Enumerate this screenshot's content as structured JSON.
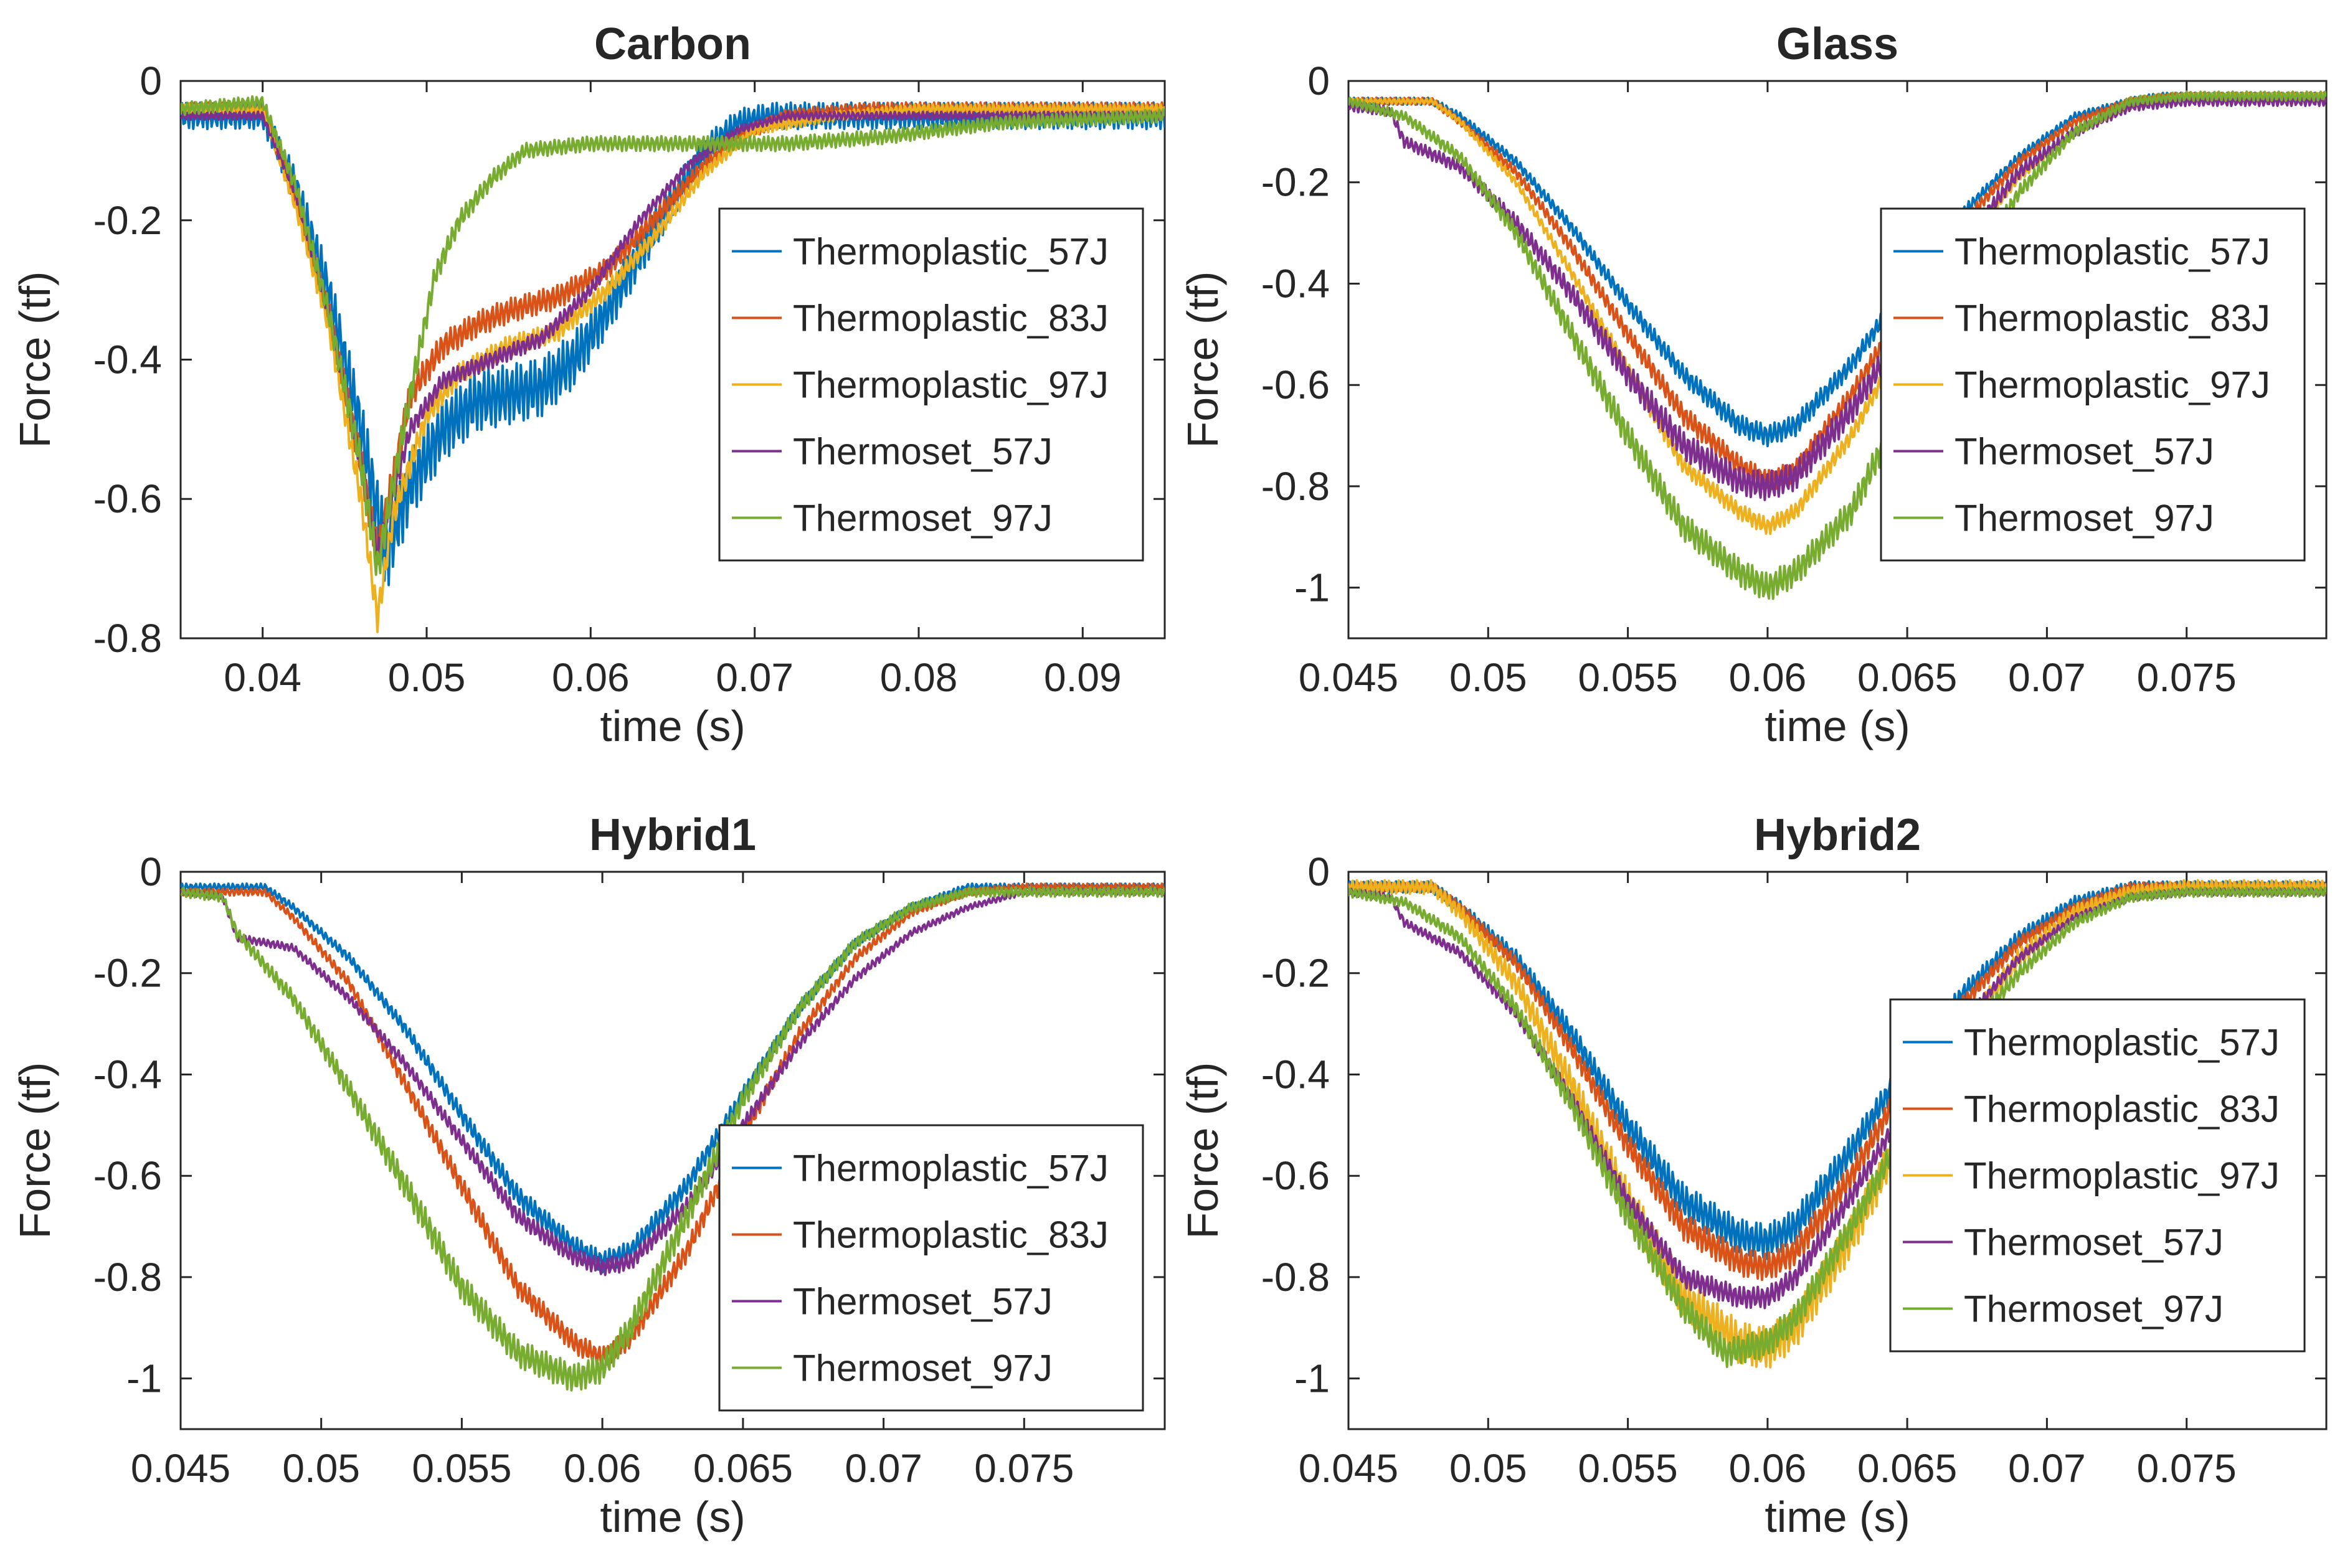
{
  "colors": {
    "Thermoplastic_57J": "#0072BD",
    "Thermoplastic_83J": "#D95319",
    "Thermoplastic_97J": "#EDB120",
    "Thermoset_57J": "#7E2F8E",
    "Thermoset_97J": "#77AC30"
  },
  "chart_data": [
    {
      "type": "line",
      "title": "Carbon",
      "xlabel": "time (s)",
      "ylabel": "Force (tf)",
      "xlim": [
        0.035,
        0.095
      ],
      "ylim": [
        -0.8,
        0
      ],
      "xticks": [
        0.04,
        0.05,
        0.06,
        0.07,
        0.08,
        0.09
      ],
      "xtick_labels": [
        "0.04",
        "0.05",
        "0.06",
        "0.07",
        "0.08",
        "0.09"
      ],
      "yticks": [
        0,
        -0.2,
        -0.4,
        -0.6,
        -0.8
      ],
      "ytick_labels": [
        "0",
        "-0.2",
        "-0.4",
        "-0.6",
        "-0.8"
      ],
      "legend_position": "right-middle",
      "series": [
        {
          "name": "Thermoplastic_57J",
          "noise": 0.04,
          "x": [
            0.035,
            0.04,
            0.042,
            0.044,
            0.046,
            0.0475,
            0.049,
            0.051,
            0.053,
            0.055,
            0.057,
            0.059,
            0.061,
            0.063,
            0.065,
            0.067,
            0.069,
            0.071,
            0.075,
            0.08,
            0.085,
            0.09,
            0.095
          ],
          "y": [
            -0.05,
            -0.05,
            -0.15,
            -0.3,
            -0.5,
            -0.68,
            -0.58,
            -0.5,
            -0.46,
            -0.45,
            -0.44,
            -0.4,
            -0.33,
            -0.25,
            -0.17,
            -0.1,
            -0.06,
            -0.05,
            -0.05,
            -0.05,
            -0.05,
            -0.05,
            -0.05
          ]
        },
        {
          "name": "Thermoplastic_83J",
          "noise": 0.02,
          "x": [
            0.035,
            0.04,
            0.042,
            0.044,
            0.046,
            0.047,
            0.049,
            0.051,
            0.053,
            0.055,
            0.058,
            0.061,
            0.063,
            0.065,
            0.067,
            0.069,
            0.072,
            0.077,
            0.085,
            0.095
          ],
          "y": [
            -0.04,
            -0.04,
            -0.17,
            -0.33,
            -0.55,
            -0.68,
            -0.45,
            -0.38,
            -0.35,
            -0.33,
            -0.31,
            -0.27,
            -0.22,
            -0.17,
            -0.12,
            -0.08,
            -0.05,
            -0.04,
            -0.04,
            -0.04
          ]
        },
        {
          "name": "Thermoplastic_97J",
          "noise": 0.015,
          "x": [
            0.035,
            0.04,
            0.042,
            0.044,
            0.046,
            0.047,
            0.048,
            0.05,
            0.052,
            0.055,
            0.058,
            0.061,
            0.064,
            0.067,
            0.07,
            0.075,
            0.08,
            0.085,
            0.095
          ],
          "y": [
            -0.04,
            -0.04,
            -0.18,
            -0.35,
            -0.6,
            -0.77,
            -0.62,
            -0.48,
            -0.42,
            -0.38,
            -0.36,
            -0.3,
            -0.22,
            -0.13,
            -0.07,
            -0.05,
            -0.04,
            -0.04,
            -0.04
          ]
        },
        {
          "name": "Thermoset_57J",
          "noise": 0.012,
          "x": [
            0.035,
            0.04,
            0.042,
            0.044,
            0.046,
            0.047,
            0.049,
            0.051,
            0.054,
            0.057,
            0.06,
            0.063,
            0.066,
            0.069,
            0.072,
            0.077,
            0.085,
            0.095
          ],
          "y": [
            -0.05,
            -0.05,
            -0.16,
            -0.33,
            -0.55,
            -0.68,
            -0.5,
            -0.43,
            -0.4,
            -0.37,
            -0.3,
            -0.2,
            -0.12,
            -0.07,
            -0.05,
            -0.05,
            -0.05,
            -0.05
          ]
        },
        {
          "name": "Thermoset_97J",
          "noise": 0.02,
          "x": [
            0.035,
            0.04,
            0.042,
            0.044,
            0.046,
            0.047,
            0.049,
            0.0505,
            0.052,
            0.054,
            0.056,
            0.06,
            0.066,
            0.072,
            0.078,
            0.085,
            0.095
          ],
          "y": [
            -0.04,
            -0.03,
            -0.15,
            -0.33,
            -0.55,
            -0.7,
            -0.45,
            -0.28,
            -0.2,
            -0.14,
            -0.1,
            -0.09,
            -0.09,
            -0.09,
            -0.08,
            -0.06,
            -0.05
          ]
        }
      ]
    },
    {
      "type": "line",
      "title": "Glass",
      "xlabel": "time (s)",
      "ylabel": "Force (tf)",
      "xlim": [
        0.045,
        0.08
      ],
      "ylim": [
        -1.1,
        0
      ],
      "xticks": [
        0.045,
        0.05,
        0.055,
        0.06,
        0.065,
        0.07,
        0.075
      ],
      "xtick_labels": [
        "0.045",
        "0.05",
        "0.055",
        "0.06",
        "0.065",
        "0.07",
        "0.075"
      ],
      "yticks": [
        0,
        -0.2,
        -0.4,
        -0.6,
        -0.8,
        -1
      ],
      "ytick_labels": [
        "0",
        "-0.2",
        "-0.4",
        "-0.6",
        "-0.8",
        "-1"
      ],
      "legend_position": "right-middle",
      "series": [
        {
          "name": "Thermoplastic_57J",
          "noise": 0.015,
          "x": [
            0.045,
            0.048,
            0.049,
            0.051,
            0.053,
            0.055,
            0.057,
            0.059,
            0.06,
            0.061,
            0.063,
            0.065,
            0.067,
            0.069,
            0.071,
            0.073,
            0.074,
            0.077,
            0.08
          ],
          "y": [
            -0.04,
            -0.04,
            -0.07,
            -0.16,
            -0.29,
            -0.44,
            -0.58,
            -0.68,
            -0.7,
            -0.68,
            -0.56,
            -0.4,
            -0.26,
            -0.15,
            -0.07,
            -0.04,
            -0.03,
            -0.03,
            -0.03
          ]
        },
        {
          "name": "Thermoplastic_83J",
          "noise": 0.015,
          "x": [
            0.045,
            0.048,
            0.049,
            0.051,
            0.053,
            0.055,
            0.057,
            0.059,
            0.06,
            0.061,
            0.063,
            0.065,
            0.067,
            0.069,
            0.071,
            0.073,
            0.0745,
            0.077,
            0.08
          ],
          "y": [
            -0.04,
            -0.04,
            -0.08,
            -0.18,
            -0.33,
            -0.5,
            -0.66,
            -0.76,
            -0.79,
            -0.77,
            -0.62,
            -0.44,
            -0.28,
            -0.16,
            -0.08,
            -0.04,
            -0.03,
            -0.03,
            -0.03
          ]
        },
        {
          "name": "Thermoplastic_97J",
          "noise": 0.012,
          "x": [
            0.045,
            0.048,
            0.049,
            0.051,
            0.053,
            0.055,
            0.057,
            0.059,
            0.06,
            0.061,
            0.063,
            0.065,
            0.067,
            0.069,
            0.071,
            0.073,
            0.075,
            0.077,
            0.08
          ],
          "y": [
            -0.04,
            -0.04,
            -0.08,
            -0.2,
            -0.38,
            -0.57,
            -0.76,
            -0.85,
            -0.88,
            -0.85,
            -0.7,
            -0.5,
            -0.33,
            -0.19,
            -0.1,
            -0.05,
            -0.03,
            -0.03,
            -0.03
          ]
        },
        {
          "name": "Thermoset_57J",
          "noise": 0.02,
          "x": [
            0.045,
            0.0465,
            0.047,
            0.049,
            0.051,
            0.053,
            0.055,
            0.057,
            0.059,
            0.06,
            0.061,
            0.063,
            0.065,
            0.067,
            0.069,
            0.071,
            0.073,
            0.075,
            0.08
          ],
          "y": [
            -0.05,
            -0.06,
            -0.12,
            -0.17,
            -0.28,
            -0.42,
            -0.58,
            -0.72,
            -0.79,
            -0.8,
            -0.78,
            -0.65,
            -0.48,
            -0.32,
            -0.18,
            -0.1,
            -0.05,
            -0.04,
            -0.04
          ]
        },
        {
          "name": "Thermoset_97J",
          "noise": 0.02,
          "x": [
            0.045,
            0.047,
            0.049,
            0.051,
            0.053,
            0.055,
            0.057,
            0.059,
            0.06,
            0.061,
            0.063,
            0.065,
            0.067,
            0.069,
            0.071,
            0.073,
            0.075,
            0.08
          ],
          "y": [
            -0.04,
            -0.07,
            -0.15,
            -0.3,
            -0.5,
            -0.7,
            -0.88,
            -0.97,
            -1.0,
            -0.97,
            -0.85,
            -0.62,
            -0.4,
            -0.22,
            -0.1,
            -0.04,
            -0.03,
            -0.03
          ]
        }
      ]
    },
    {
      "type": "line",
      "title": "Hybrid1",
      "xlabel": "time (s)",
      "ylabel": "Force (tf)",
      "xlim": [
        0.045,
        0.08
      ],
      "ylim": [
        -1.1,
        0
      ],
      "xticks": [
        0.045,
        0.05,
        0.055,
        0.06,
        0.065,
        0.07,
        0.075
      ],
      "xtick_labels": [
        "0.045",
        "0.05",
        "0.055",
        "0.06",
        "0.065",
        "0.07",
        "0.075"
      ],
      "yticks": [
        0,
        -0.2,
        -0.4,
        -0.6,
        -0.8,
        -1
      ],
      "ytick_labels": [
        "0",
        "-0.2",
        "-0.4",
        "-0.6",
        "-0.8",
        "-1"
      ],
      "legend_position": "right-bottom",
      "series": [
        {
          "name": "Thermoplastic_57J",
          "noise": 0.015,
          "x": [
            0.045,
            0.048,
            0.049,
            0.051,
            0.053,
            0.055,
            0.057,
            0.059,
            0.06,
            0.061,
            0.063,
            0.065,
            0.067,
            0.069,
            0.071,
            0.073,
            0.0745,
            0.077,
            0.08
          ],
          "y": [
            -0.03,
            -0.03,
            -0.07,
            -0.17,
            -0.31,
            -0.48,
            -0.64,
            -0.74,
            -0.77,
            -0.75,
            -0.62,
            -0.44,
            -0.27,
            -0.14,
            -0.07,
            -0.03,
            -0.03,
            -0.03,
            -0.03
          ]
        },
        {
          "name": "Thermoplastic_83J",
          "noise": 0.015,
          "x": [
            0.045,
            0.048,
            0.049,
            0.051,
            0.053,
            0.055,
            0.057,
            0.059,
            0.06,
            0.061,
            0.063,
            0.065,
            0.067,
            0.069,
            0.071,
            0.073,
            0.075,
            0.077,
            0.08
          ],
          "y": [
            -0.04,
            -0.04,
            -0.09,
            -0.22,
            -0.42,
            -0.62,
            -0.82,
            -0.93,
            -0.96,
            -0.92,
            -0.75,
            -0.52,
            -0.32,
            -0.17,
            -0.08,
            -0.04,
            -0.03,
            -0.03,
            -0.03
          ]
        },
        {
          "name": "Thermoset_57J",
          "noise": 0.012,
          "x": [
            0.045,
            0.0465,
            0.047,
            0.049,
            0.051,
            0.053,
            0.055,
            0.057,
            0.059,
            0.06,
            0.061,
            0.063,
            0.065,
            0.067,
            0.069,
            0.071,
            0.073,
            0.075,
            0.077,
            0.08
          ],
          "y": [
            -0.04,
            -0.05,
            -0.13,
            -0.15,
            -0.25,
            -0.38,
            -0.53,
            -0.68,
            -0.76,
            -0.78,
            -0.77,
            -0.66,
            -0.5,
            -0.34,
            -0.21,
            -0.12,
            -0.07,
            -0.04,
            -0.04,
            -0.04
          ]
        },
        {
          "name": "Thermoset_97J",
          "noise": 0.02,
          "x": [
            0.045,
            0.0465,
            0.047,
            0.049,
            0.051,
            0.053,
            0.055,
            0.057,
            0.059,
            0.06,
            0.061,
            0.063,
            0.065,
            0.067,
            0.069,
            0.071,
            0.073,
            0.08
          ],
          "y": [
            -0.04,
            -0.05,
            -0.12,
            -0.25,
            -0.43,
            -0.62,
            -0.82,
            -0.95,
            -1.0,
            -0.98,
            -0.9,
            -0.68,
            -0.45,
            -0.27,
            -0.14,
            -0.07,
            -0.04,
            -0.04
          ]
        }
      ]
    },
    {
      "type": "line",
      "title": "Hybrid2",
      "xlabel": "time (s)",
      "ylabel": "Force (tf)",
      "xlim": [
        0.045,
        0.08
      ],
      "ylim": [
        -1.1,
        0
      ],
      "xticks": [
        0.045,
        0.05,
        0.055,
        0.06,
        0.065,
        0.07,
        0.075
      ],
      "xtick_labels": [
        "0.045",
        "0.05",
        "0.055",
        "0.06",
        "0.065",
        "0.07",
        "0.075"
      ],
      "yticks": [
        0,
        -0.2,
        -0.4,
        -0.6,
        -0.8,
        -1
      ],
      "ytick_labels": [
        "0",
        "-0.2",
        "-0.4",
        "-0.6",
        "-0.8",
        "-1"
      ],
      "legend_position": "right-middle",
      "series": [
        {
          "name": "Thermoplastic_57J",
          "noise": 0.025,
          "x": [
            0.045,
            0.048,
            0.049,
            0.051,
            0.053,
            0.055,
            0.057,
            0.059,
            0.06,
            0.061,
            0.063,
            0.065,
            0.067,
            0.069,
            0.071,
            0.073,
            0.075,
            0.08
          ],
          "y": [
            -0.03,
            -0.03,
            -0.07,
            -0.17,
            -0.32,
            -0.5,
            -0.65,
            -0.72,
            -0.73,
            -0.7,
            -0.55,
            -0.38,
            -0.24,
            -0.13,
            -0.06,
            -0.03,
            -0.03,
            -0.03
          ]
        },
        {
          "name": "Thermoplastic_83J",
          "noise": 0.02,
          "x": [
            0.045,
            0.048,
            0.049,
            0.051,
            0.053,
            0.055,
            0.057,
            0.059,
            0.06,
            0.061,
            0.063,
            0.065,
            0.067,
            0.069,
            0.071,
            0.073,
            0.075,
            0.08
          ],
          "y": [
            -0.03,
            -0.03,
            -0.07,
            -0.18,
            -0.35,
            -0.54,
            -0.7,
            -0.77,
            -0.78,
            -0.75,
            -0.6,
            -0.41,
            -0.26,
            -0.14,
            -0.07,
            -0.03,
            -0.03,
            -0.03
          ]
        },
        {
          "name": "Thermoplastic_97J",
          "noise": 0.03,
          "x": [
            0.045,
            0.048,
            0.049,
            0.051,
            0.053,
            0.055,
            0.057,
            0.059,
            0.06,
            0.061,
            0.063,
            0.065,
            0.067,
            0.069,
            0.071,
            0.073,
            0.075,
            0.08
          ],
          "y": [
            -0.03,
            -0.03,
            -0.08,
            -0.22,
            -0.42,
            -0.65,
            -0.84,
            -0.93,
            -0.94,
            -0.9,
            -0.72,
            -0.5,
            -0.32,
            -0.17,
            -0.08,
            -0.04,
            -0.03,
            -0.03
          ]
        },
        {
          "name": "Thermoset_57J",
          "noise": 0.015,
          "x": [
            0.045,
            0.0465,
            0.047,
            0.049,
            0.051,
            0.053,
            0.055,
            0.057,
            0.059,
            0.06,
            0.061,
            0.063,
            0.065,
            0.067,
            0.069,
            0.071,
            0.073,
            0.075,
            0.08
          ],
          "y": [
            -0.04,
            -0.05,
            -0.1,
            -0.16,
            -0.28,
            -0.45,
            -0.65,
            -0.8,
            -0.84,
            -0.84,
            -0.8,
            -0.64,
            -0.46,
            -0.3,
            -0.17,
            -0.09,
            -0.05,
            -0.04,
            -0.04
          ]
        },
        {
          "name": "Thermoset_97J",
          "noise": 0.02,
          "x": [
            0.045,
            0.047,
            0.049,
            0.051,
            0.053,
            0.055,
            0.057,
            0.0585,
            0.06,
            0.061,
            0.063,
            0.065,
            0.067,
            0.069,
            0.071,
            0.073,
            0.075,
            0.08
          ],
          "y": [
            -0.04,
            -0.06,
            -0.13,
            -0.27,
            -0.46,
            -0.68,
            -0.86,
            -0.95,
            -0.93,
            -0.88,
            -0.7,
            -0.5,
            -0.33,
            -0.2,
            -0.1,
            -0.05,
            -0.04,
            -0.04
          ]
        }
      ]
    }
  ]
}
